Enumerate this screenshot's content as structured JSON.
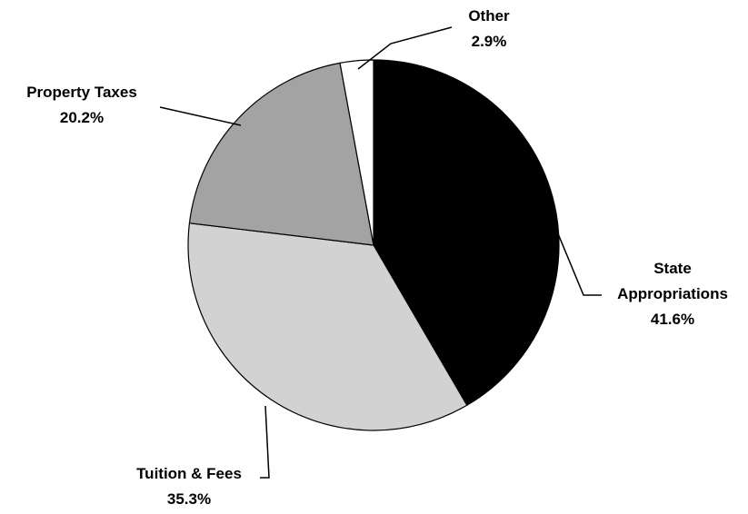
{
  "chart_data": {
    "type": "pie",
    "categories": [
      "State Appropriations",
      "Tuition & Fees",
      "Property Taxes",
      "Other"
    ],
    "values": [
      41.6,
      35.3,
      20.2,
      2.9
    ],
    "value_labels": [
      "41.6%",
      "35.3%",
      "20.2%",
      "2.9%"
    ],
    "colors": [
      "#000000",
      "#d2d2d2",
      "#a3a3a3",
      "#ffffff"
    ]
  }
}
